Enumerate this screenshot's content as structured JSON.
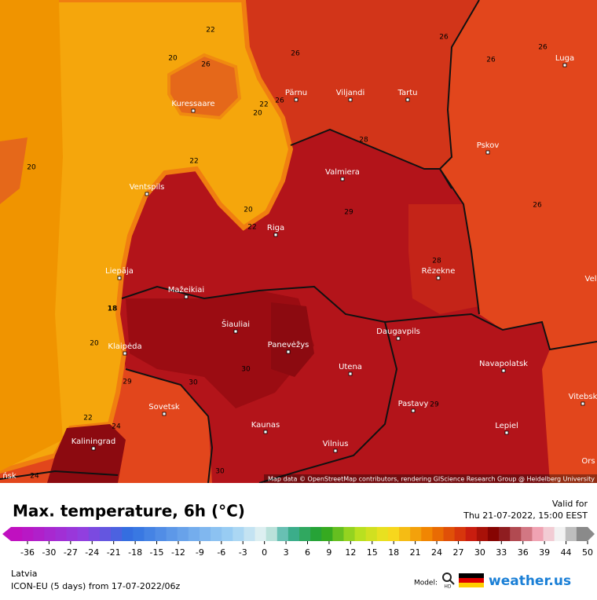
{
  "map": {
    "cities": [
      "Kuressaare",
      "Pärnu",
      "Viljandi",
      "Tartu",
      "Luga",
      "Pskov",
      "Valmiera",
      "Ventspils",
      "Riga",
      "Liepāja",
      "Mažeikiai",
      "Rēzekne",
      "Šiauliai",
      "Panevėžys",
      "Daugavpils",
      "Klaipėda",
      "Utena",
      "Navapolatsk",
      "Vitebsk",
      "Sovetsk",
      "Pastavy",
      "Lepiel",
      "Kaunas",
      "Kaliningrad",
      "Vilnius",
      "Ors",
      "Vel",
      "ńsk"
    ],
    "contour_labels": [
      22,
      20,
      26,
      26,
      26,
      26,
      26,
      22,
      26,
      20,
      22,
      20,
      28,
      29,
      20,
      22,
      28,
      26,
      18,
      20,
      29,
      30,
      30,
      22,
      24,
      24,
      29,
      30
    ],
    "attribution": "Map data © OpenStreetMap contributors, rendering GIScience Research Group @ Heidelberg University"
  },
  "legend": {
    "title": "Max. temperature, 6h (°C)",
    "valid_label": "Valid for",
    "valid_time": "Thu 21-07-2022, 15:00 EEST",
    "ticks": [
      -36,
      -30,
      -27,
      -24,
      -21,
      -18,
      -15,
      -12,
      -9,
      -6,
      -3,
      0,
      3,
      6,
      9,
      12,
      15,
      18,
      21,
      24,
      27,
      30,
      33,
      36,
      39,
      44,
      50
    ],
    "region": "Latvia",
    "model_run": "ICON-EU (5 days) from 17-07-2022/06z",
    "model_label": "Model:",
    "hd_label": "HD",
    "brand": "weather.us"
  }
}
